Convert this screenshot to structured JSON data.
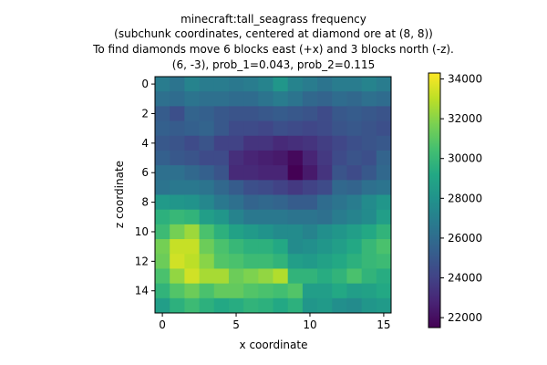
{
  "chart_data": {
    "type": "heatmap",
    "title": [
      "minecraft:tall_seagrass frequency",
      "(subchunk coordinates, centered at diamond ore at (8, 8))",
      "To find diamonds move 6 blocks east (+x) and 3 blocks north (-z).",
      "(6, -3), prob_1=0.043, prob_2=0.115"
    ],
    "xlabel": "x coordinate",
    "ylabel": "z coordinate",
    "x_ticks": [
      "0",
      "5",
      "10",
      "15"
    ],
    "y_ticks": [
      "0",
      "2",
      "4",
      "6",
      "8",
      "10",
      "12",
      "14"
    ],
    "colorbar_ticks": [
      "22000",
      "24000",
      "26000",
      "28000",
      "30000",
      "32000",
      "34000"
    ],
    "colormap": "viridis",
    "vmin": 21500,
    "vmax": 34300,
    "grid": false,
    "values": [
      [
        26800,
        26400,
        27200,
        26800,
        26800,
        26600,
        26800,
        27200,
        28200,
        27200,
        26800,
        26400,
        26800,
        26800,
        27200,
        26800
      ],
      [
        26200,
        26000,
        26400,
        26200,
        26200,
        26000,
        26000,
        26400,
        26800,
        26400,
        25800,
        25600,
        26000,
        25800,
        26200,
        26000
      ],
      [
        25200,
        24600,
        25600,
        25400,
        25000,
        24800,
        24800,
        25000,
        25200,
        25000,
        24800,
        24400,
        25000,
        25200,
        25000,
        24800
      ],
      [
        25400,
        25200,
        25400,
        25600,
        25000,
        24400,
        24400,
        24200,
        24600,
        24400,
        24200,
        24400,
        24800,
        25000,
        24800,
        24600
      ],
      [
        25000,
        24800,
        24400,
        24800,
        24000,
        24000,
        23400,
        23400,
        23000,
        23200,
        23400,
        23800,
        24200,
        24600,
        24800,
        25000
      ],
      [
        25400,
        25000,
        24800,
        24400,
        24400,
        23200,
        22800,
        22600,
        22400,
        21800,
        22800,
        23600,
        24400,
        24800,
        24600,
        25600
      ],
      [
        26200,
        26200,
        25800,
        25400,
        24800,
        23000,
        23000,
        22800,
        22800,
        21500,
        22400,
        23400,
        24800,
        24400,
        25000,
        25800
      ],
      [
        26400,
        26600,
        26600,
        26400,
        25800,
        25200,
        24600,
        24400,
        24000,
        23600,
        24000,
        24400,
        25800,
        25600,
        26200,
        26400
      ],
      [
        28400,
        28200,
        28000,
        27400,
        26600,
        26200,
        25600,
        25800,
        25600,
        25200,
        25200,
        26000,
        26400,
        26800,
        27600,
        28200
      ],
      [
        29600,
        30000,
        29800,
        28600,
        28200,
        27200,
        26600,
        26600,
        26600,
        26400,
        26400,
        26200,
        26800,
        27200,
        27600,
        28600
      ],
      [
        30200,
        31600,
        32400,
        30600,
        29600,
        28800,
        28400,
        28000,
        27600,
        27600,
        27200,
        27800,
        28200,
        28600,
        29200,
        29800
      ],
      [
        31600,
        33200,
        33200,
        31400,
        30600,
        30000,
        29600,
        29600,
        29200,
        27600,
        27800,
        28200,
        28600,
        29200,
        30000,
        30600
      ],
      [
        31400,
        33400,
        33000,
        32000,
        30800,
        30600,
        30200,
        30200,
        29800,
        28600,
        28400,
        28800,
        29200,
        29600,
        30000,
        30200
      ],
      [
        30600,
        32200,
        33400,
        32600,
        32600,
        31400,
        31800,
        32200,
        32800,
        29800,
        29800,
        29400,
        29800,
        30600,
        29800,
        29400
      ],
      [
        29800,
        30800,
        31400,
        30600,
        31200,
        31200,
        30800,
        30600,
        30400,
        30800,
        28600,
        28600,
        29200,
        28600,
        28800,
        29200
      ],
      [
        28600,
        29600,
        30200,
        29600,
        29200,
        29400,
        29800,
        29600,
        29200,
        29600,
        28200,
        28400,
        27800,
        27600,
        28200,
        28400
      ]
    ]
  }
}
